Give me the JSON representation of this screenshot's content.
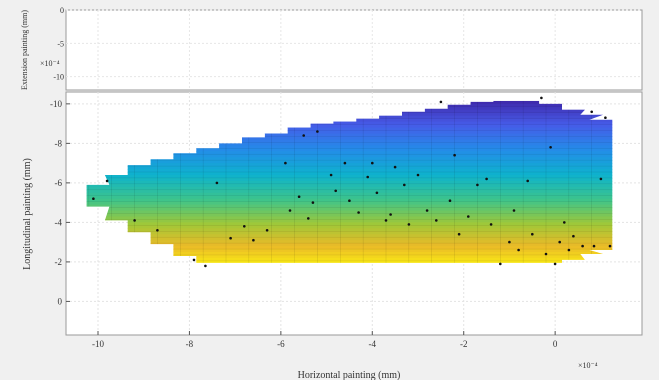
{
  "chart_data": {
    "type": "heatmap",
    "colormap": "parula",
    "background_color": "#f0f0f0",
    "axes_color": "#ffffff",
    "top_axis": {
      "ylabel": "Extension  painting  (mm)",
      "yticks": [
        {
          "value": 0,
          "label": "0"
        },
        {
          "value": -5,
          "label": "-5"
        },
        {
          "value": -10,
          "label": "-10"
        }
      ],
      "exponent": "×10⁻⁴",
      "ylim": [
        -12,
        0
      ]
    },
    "main_axis": {
      "xlabel": "Horizontal painting (mm)",
      "ylabel": "Longitudinal  painting (mm)",
      "xlim": [
        -10.7,
        1.9
      ],
      "ylim": [
        1.7,
        -10.6
      ],
      "xticks": [
        {
          "value": -10,
          "label": "-10"
        },
        {
          "value": -8,
          "label": "-8"
        },
        {
          "value": -6,
          "label": "-6"
        },
        {
          "value": -4,
          "label": "-4"
        },
        {
          "value": -2,
          "label": "-2"
        },
        {
          "value": 0,
          "label": "0"
        }
      ],
      "yticks": [
        {
          "value": -10,
          "label": "-10"
        },
        {
          "value": -8,
          "label": "-8"
        },
        {
          "value": -6,
          "label": "-6"
        },
        {
          "value": -4,
          "label": "-4"
        },
        {
          "value": -2,
          "label": "-2"
        },
        {
          "value": 0,
          "label": "0"
        }
      ],
      "x_exponent": "×10⁻⁴",
      "grid": true,
      "color_range": [
        -10.2,
        -1.8
      ],
      "region_boundary": {
        "x": [
          -10,
          -9.6,
          -9.1,
          -8.6,
          -8.1,
          -7.6,
          -7.1,
          -6.6,
          -6.1,
          -5.6,
          -5.1,
          -4.6,
          -4.1,
          -3.6,
          -3.1,
          -2.6,
          -2.1,
          -1.6,
          -1.1,
          -0.6,
          -0.1,
          0.4,
          0.8,
          1.0
        ],
        "y_top": [
          -5.9,
          -6.4,
          -6.9,
          -7.2,
          -7.5,
          -7.75,
          -8.0,
          -8.3,
          -8.5,
          -8.8,
          -9.0,
          -9.1,
          -9.25,
          -9.4,
          -9.6,
          -9.75,
          -9.95,
          -10.1,
          -10.15,
          -10.15,
          -10.0,
          -9.7,
          -9.45,
          -9.2
        ],
        "y_bottom": [
          -4.8,
          -4.1,
          -3.5,
          -2.9,
          -2.3,
          -1.95,
          -1.95,
          -1.95,
          -1.95,
          -1.95,
          -1.95,
          -1.95,
          -1.95,
          -1.95,
          -1.95,
          -1.95,
          -1.95,
          -1.95,
          -1.95,
          -1.95,
          -1.95,
          -2.1,
          -2.4,
          -2.6
        ]
      },
      "points": [
        [
          -10.1,
          -5.2
        ],
        [
          -9.8,
          -6.1
        ],
        [
          -9.2,
          -4.1
        ],
        [
          -8.7,
          -3.6
        ],
        [
          -7.9,
          -2.1
        ],
        [
          -7.65,
          -1.8
        ],
        [
          -7.4,
          -6.0
        ],
        [
          -7.1,
          -3.2
        ],
        [
          -6.8,
          -3.8
        ],
        [
          -6.6,
          -3.1
        ],
        [
          -6.3,
          -3.6
        ],
        [
          -5.9,
          -7.0
        ],
        [
          -5.8,
          -4.6
        ],
        [
          -5.6,
          -5.3
        ],
        [
          -5.5,
          -8.4
        ],
        [
          -5.4,
          -4.2
        ],
        [
          -5.3,
          -5.0
        ],
        [
          -5.2,
          -8.6
        ],
        [
          -4.9,
          -6.4
        ],
        [
          -4.8,
          -5.6
        ],
        [
          -4.6,
          -7.0
        ],
        [
          -4.5,
          -5.1
        ],
        [
          -4.3,
          -4.5
        ],
        [
          -4.1,
          -6.3
        ],
        [
          -4.0,
          -7.0
        ],
        [
          -3.9,
          -5.5
        ],
        [
          -3.7,
          -4.1
        ],
        [
          -3.6,
          -4.4
        ],
        [
          -3.5,
          -6.8
        ],
        [
          -3.3,
          -5.9
        ],
        [
          -3.2,
          -3.9
        ],
        [
          -3.0,
          -6.4
        ],
        [
          -2.8,
          -4.6
        ],
        [
          -2.6,
          -4.1
        ],
        [
          -2.5,
          -10.1
        ],
        [
          -2.3,
          -5.1
        ],
        [
          -2.2,
          -7.4
        ],
        [
          -2.1,
          -3.4
        ],
        [
          -1.9,
          -4.3
        ],
        [
          -1.7,
          -5.9
        ],
        [
          -1.5,
          -6.2
        ],
        [
          -1.4,
          -3.9
        ],
        [
          -1.2,
          -1.9
        ],
        [
          -1.0,
          -3.0
        ],
        [
          -0.9,
          -4.6
        ],
        [
          -0.8,
          -2.6
        ],
        [
          -0.6,
          -6.1
        ],
        [
          -0.5,
          -3.4
        ],
        [
          -0.3,
          -10.3
        ],
        [
          -0.2,
          -2.4
        ],
        [
          -0.1,
          -7.8
        ],
        [
          0.0,
          -1.9
        ],
        [
          0.1,
          -3.0
        ],
        [
          0.2,
          -4.0
        ],
        [
          0.3,
          -2.6
        ],
        [
          0.4,
          -3.3
        ],
        [
          0.6,
          -2.8
        ],
        [
          0.8,
          -9.6
        ],
        [
          0.85,
          -2.8
        ],
        [
          1.0,
          -6.2
        ],
        [
          1.1,
          -9.3
        ],
        [
          1.2,
          -2.8
        ]
      ]
    }
  }
}
